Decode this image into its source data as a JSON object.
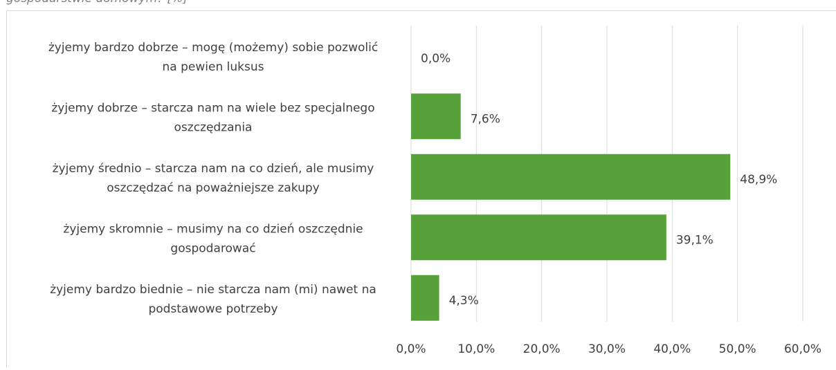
{
  "chart_data": {
    "type": "bar",
    "orientation": "horizontal",
    "title": "gospodarstwie domowym? [%]",
    "categories": [
      [
        "żyjemy bardzo dobrze – mogę (możemy) sobie pozwolić",
        "na pewien luksus"
      ],
      [
        "żyjemy dobrze – starcza nam na wiele bez specjalnego",
        "oszczędzania"
      ],
      [
        "żyjemy średnio – starcza nam na co dzień, ale musimy",
        "oszczędzać na poważniejsze zakupy"
      ],
      [
        "żyjemy skromnie – musimy na co dzień oszczędnie",
        "gospodarować"
      ],
      [
        "żyjemy bardzo biednie – nie starcza nam (mi) nawet na",
        "podstawowe potrzeby"
      ]
    ],
    "values": [
      0,
      7.6,
      48.9,
      39.1,
      4.3
    ],
    "value_labels": [
      "0,0%",
      "7,6%",
      "48,9%",
      "39,1%",
      "4,3%"
    ],
    "color": "#56a13a",
    "xlim": [
      0,
      60
    ],
    "xticks": [
      {
        "value": 0,
        "label": "0,0%"
      },
      {
        "value": 10,
        "label": "10,0%"
      },
      {
        "value": 20,
        "label": "20,0%"
      },
      {
        "value": 30,
        "label": "30,0%"
      },
      {
        "value": 40,
        "label": "40,0%"
      },
      {
        "value": 50,
        "label": "50,0%"
      },
      {
        "value": 60,
        "label": "60,0%"
      }
    ],
    "grid": true
  }
}
